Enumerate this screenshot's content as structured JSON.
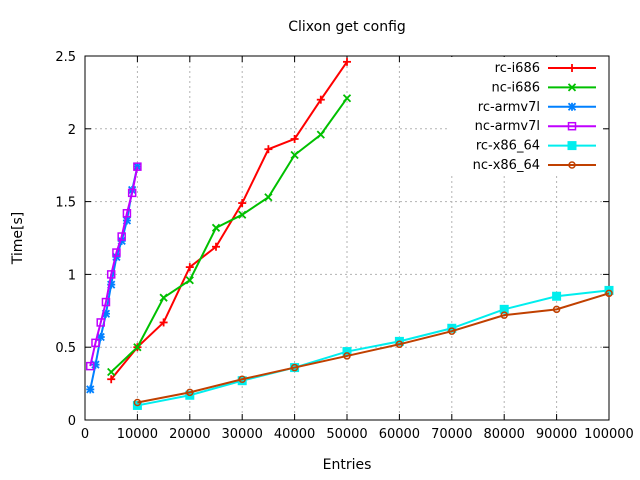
{
  "title": "Clixon get config",
  "chart_data": {
    "type": "line",
    "title": "Clixon get config",
    "xlabel": "Entries",
    "ylabel": "Time[s]",
    "xlim": [
      0,
      100000
    ],
    "ylim": [
      0,
      2.5
    ],
    "x_ticks": [
      0,
      10000,
      20000,
      30000,
      40000,
      50000,
      60000,
      70000,
      80000,
      90000,
      100000
    ],
    "x_tick_labels": [
      "0",
      "10000",
      "20000",
      "30000",
      "40000",
      "50000",
      "60000",
      "70000",
      "80000",
      "90000",
      "100000"
    ],
    "y_ticks": [
      0,
      0.5,
      1,
      1.5,
      2,
      2.5
    ],
    "y_tick_labels": [
      "0",
      "0.5",
      "1",
      "1.5",
      "2",
      "2.5"
    ],
    "grid": true,
    "legend_position": "top-right",
    "background_color": "#ffffff",
    "grid_color": "#b3b3b3",
    "axis_color": "#000000",
    "series": [
      {
        "name": "rc-i686",
        "color": "#ff0000",
        "marker": "plus",
        "x": [
          5000,
          10000,
          15000,
          20000,
          25000,
          30000,
          35000,
          40000,
          45000,
          50000
        ],
        "y": [
          0.28,
          0.5,
          0.67,
          1.05,
          1.19,
          1.49,
          1.86,
          1.93,
          2.2,
          2.46
        ]
      },
      {
        "name": "nc-i686",
        "color": "#00c000",
        "marker": "cross",
        "x": [
          5000,
          10000,
          15000,
          20000,
          25000,
          30000,
          35000,
          40000,
          45000,
          50000
        ],
        "y": [
          0.33,
          0.5,
          0.84,
          0.96,
          1.32,
          1.41,
          1.53,
          1.82,
          1.96,
          2.21
        ]
      },
      {
        "name": "rc-armv7l",
        "color": "#0080ff",
        "marker": "star",
        "x": [
          1000,
          2000,
          3000,
          4000,
          5000,
          6000,
          7000,
          8000,
          9000,
          10000
        ],
        "y": [
          0.21,
          0.38,
          0.57,
          0.73,
          0.93,
          1.12,
          1.23,
          1.37,
          1.58,
          1.74
        ]
      },
      {
        "name": "nc-armv7l",
        "color": "#c000ff",
        "marker": "open-square",
        "x": [
          1000,
          2000,
          3000,
          4000,
          5000,
          6000,
          7000,
          8000,
          9000,
          10000
        ],
        "y": [
          0.37,
          0.53,
          0.67,
          0.81,
          1.0,
          1.15,
          1.26,
          1.42,
          1.56,
          1.74
        ]
      },
      {
        "name": "rc-x86_64",
        "color": "#00eeee",
        "marker": "filled-square",
        "x": [
          10000,
          20000,
          30000,
          40000,
          50000,
          60000,
          70000,
          80000,
          90000,
          100000
        ],
        "y": [
          0.1,
          0.17,
          0.27,
          0.36,
          0.47,
          0.54,
          0.63,
          0.76,
          0.85,
          0.89
        ]
      },
      {
        "name": "nc-x86_64",
        "color": "#c04000",
        "marker": "open-circle",
        "x": [
          10000,
          20000,
          30000,
          40000,
          50000,
          60000,
          70000,
          80000,
          90000,
          100000
        ],
        "y": [
          0.12,
          0.19,
          0.28,
          0.36,
          0.44,
          0.52,
          0.61,
          0.72,
          0.76,
          0.87
        ]
      }
    ]
  }
}
